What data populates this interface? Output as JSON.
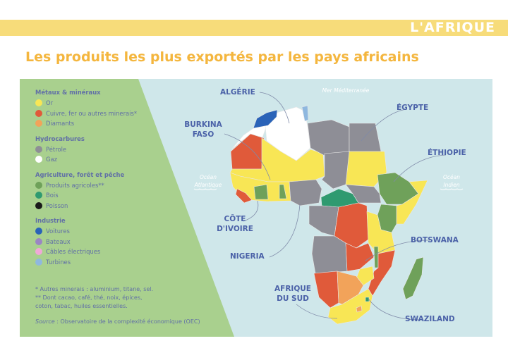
{
  "banner": {
    "label": "L'AFRIQUE"
  },
  "title": "Les produits les plus exportés par les pays africains",
  "legend": [
    {
      "category": "Métaux & minéraux",
      "items": [
        {
          "label": "Or",
          "color": "#f8e655"
        },
        {
          "label": "Cuivre, fer ou autres minerais*",
          "color": "#e05a3a"
        },
        {
          "label": "Diamants",
          "color": "#f2a35a"
        }
      ]
    },
    {
      "category": "Hydrocarbures",
      "items": [
        {
          "label": "Pétrole",
          "color": "#8e8e96"
        },
        {
          "label": "Gaz",
          "color": "#ffffff"
        }
      ]
    },
    {
      "category": "Agriculture, forêt et pêche",
      "items": [
        {
          "label": "Produits agricoles**",
          "color": "#6fa15a"
        },
        {
          "label": "Bois",
          "color": "#2f9a70"
        },
        {
          "label": "Poisson",
          "color": "#1a1a1a"
        }
      ]
    },
    {
      "category": "Industrie",
      "items": [
        {
          "label": "Voitures",
          "color": "#2a63b8"
        },
        {
          "label": "Bateaux",
          "color": "#9b86c4"
        },
        {
          "label": "Câbles électriques",
          "color": "#f0a8d8"
        },
        {
          "label": "Turbines",
          "color": "#8fb8df"
        }
      ]
    }
  ],
  "notes": [
    "* Autres minerais : aluminium, titane, sel.",
    "** Dont cacao, café, thé, noix, épices,",
    "coton, tabac, huiles essentielles."
  ],
  "source": {
    "label": "Source",
    "text": " : Observatoire de la complexité économique (OEC)"
  },
  "seas": {
    "mediterranean": "Mer Méditerranée",
    "atlantic": [
      "Océan",
      "Atlantique"
    ],
    "indian": [
      "Océan",
      "Indien"
    ]
  },
  "countries": {
    "algerie": "ALGÉRIE",
    "burkina": [
      "BURKINA",
      "FASO"
    ],
    "cote_ivoire": [
      "CÔTE",
      "D'IVOIRE"
    ],
    "nigeria": "NIGERIA",
    "afrique_du_sud": [
      "AFRIQUE",
      "DU SUD"
    ],
    "egypte": "ÉGYPTE",
    "ethiopie": "ÉTHIOPIE",
    "botswana": "BOTSWANA",
    "swaziland": "SWAZILAND"
  },
  "colors": {
    "banner": "#f7dc7a",
    "title": "#f4b63e",
    "sea": "#cfe7ea",
    "legend_panel": "#a9d08e",
    "label": "#4b62a8"
  }
}
